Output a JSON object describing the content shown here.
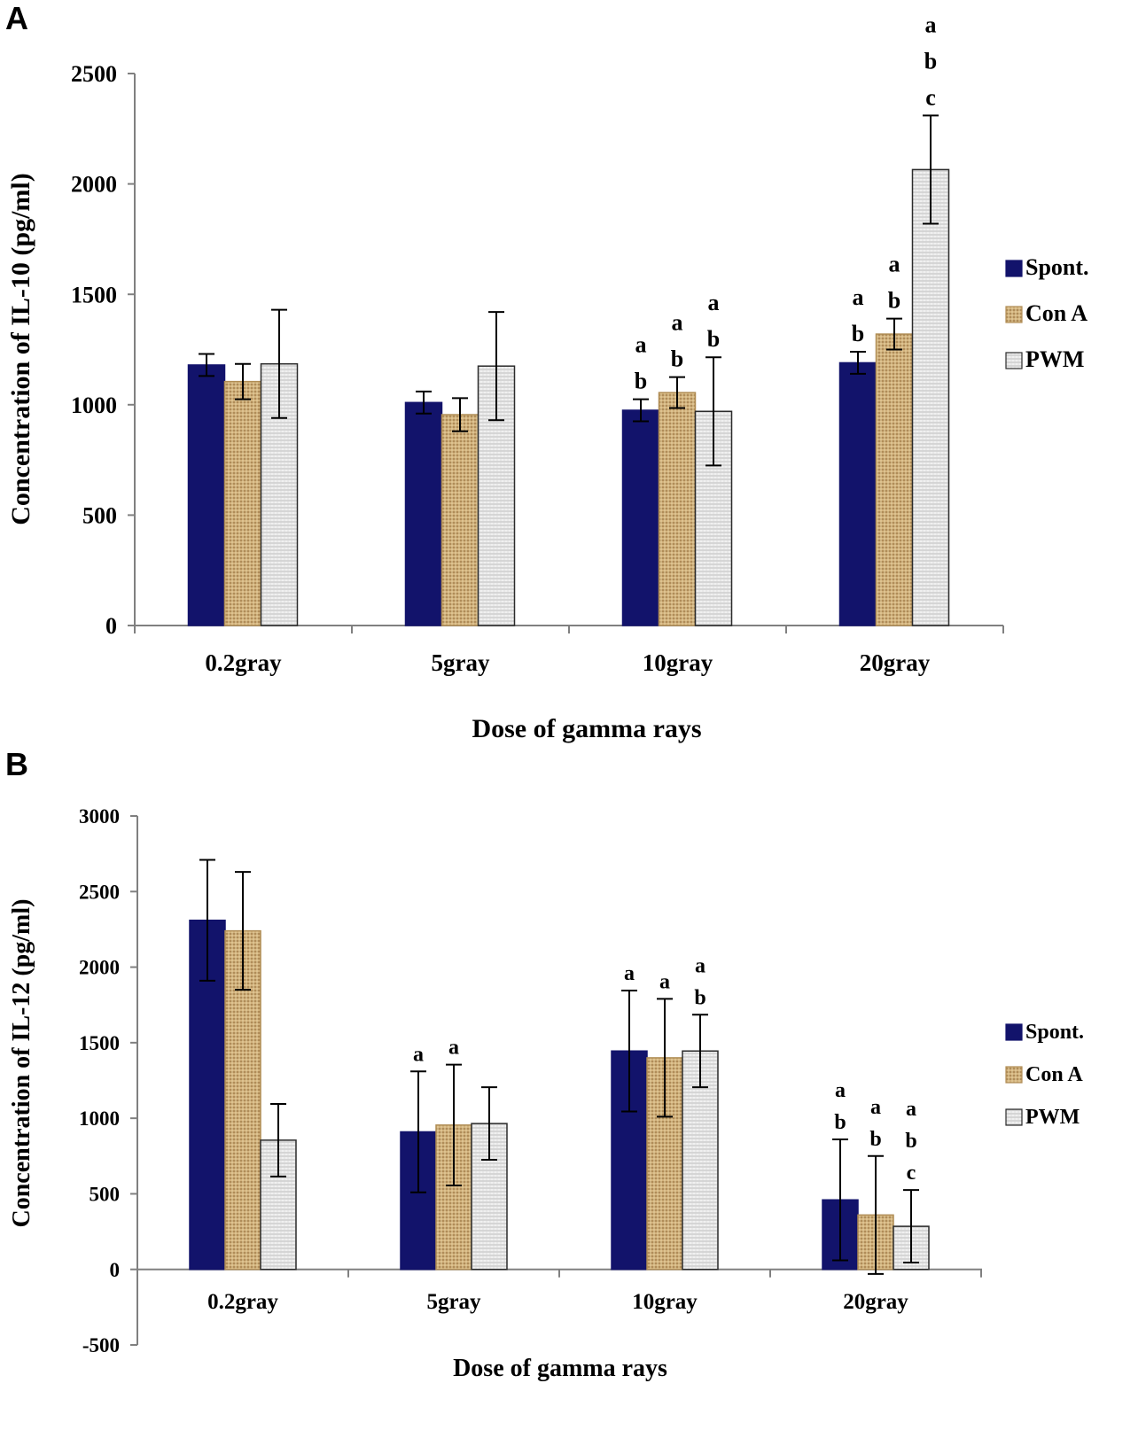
{
  "chart_data": [
    {
      "panel_label": "A",
      "type": "bar",
      "xlabel": "Dose of gamma rays",
      "ylabel": "Concentration of IL-10 (pg/ml)",
      "categories": [
        "0.2gray",
        "5gray",
        "10gray",
        "20gray"
      ],
      "ylim": [
        0,
        2500
      ],
      "yticks": [
        "0",
        "500",
        "1000",
        "1500",
        "2000",
        "2500"
      ],
      "ytick_values": [
        0,
        500,
        1000,
        1500,
        2000,
        2500
      ],
      "legend": [
        "Spont.",
        "Con A",
        "PWM"
      ],
      "series": [
        {
          "name": "Spont.",
          "values": [
            1180,
            1010,
            975,
            1190
          ],
          "errors": [
            50,
            50,
            50,
            50
          ],
          "annotations": [
            [],
            [],
            [
              "a",
              "b"
            ],
            [
              "a",
              "b"
            ]
          ]
        },
        {
          "name": "Con A",
          "values": [
            1105,
            955,
            1055,
            1320
          ],
          "errors": [
            80,
            75,
            70,
            70
          ],
          "annotations": [
            [],
            [],
            [
              "a",
              "b"
            ],
            [
              "a",
              "b"
            ]
          ]
        },
        {
          "name": "PWM",
          "values": [
            1185,
            1175,
            970,
            2065
          ],
          "errors": [
            245,
            245,
            245,
            245
          ],
          "annotations": [
            [],
            [],
            [
              "a",
              "b"
            ],
            [
              "a",
              "b",
              "c"
            ]
          ]
        }
      ]
    },
    {
      "panel_label": "B",
      "type": "bar",
      "xlabel": "Dose of gamma rays",
      "ylabel": "Concentration of IL-12 (pg/ml)",
      "categories": [
        "0.2gray",
        "5gray",
        "10gray",
        "20gray"
      ],
      "ylim": [
        -500,
        3000
      ],
      "yticks": [
        "-500",
        "0",
        "500",
        "1000",
        "1500",
        "2000",
        "2500",
        "3000"
      ],
      "ytick_values": [
        -500,
        0,
        500,
        1000,
        1500,
        2000,
        2500,
        3000
      ],
      "legend": [
        "Spont.",
        "Con A",
        "PWM"
      ],
      "series": [
        {
          "name": "Spont.",
          "values": [
            2310,
            910,
            1445,
            460
          ],
          "errors": [
            400,
            400,
            400,
            400
          ],
          "annotations": [
            [],
            [
              "a"
            ],
            [
              "a"
            ],
            [
              "a",
              "b"
            ]
          ]
        },
        {
          "name": "Con A",
          "values": [
            2240,
            955,
            1400,
            360
          ],
          "errors": [
            390,
            400,
            390,
            390
          ],
          "annotations": [
            [],
            [
              "a"
            ],
            [
              "a"
            ],
            [
              "a",
              "b"
            ]
          ]
        },
        {
          "name": "PWM",
          "values": [
            855,
            965,
            1445,
            285
          ],
          "errors": [
            240,
            240,
            240,
            240
          ],
          "annotations": [
            [],
            [],
            [
              "a",
              "b"
            ],
            [
              "a",
              "b",
              "c"
            ]
          ]
        }
      ]
    }
  ],
  "colors": {
    "spont": "#12136b",
    "cona": "#c9a874",
    "cona_dark": "#8a6a3a",
    "pwm": "#e6e6e6",
    "axis": "#7f7f7f"
  }
}
